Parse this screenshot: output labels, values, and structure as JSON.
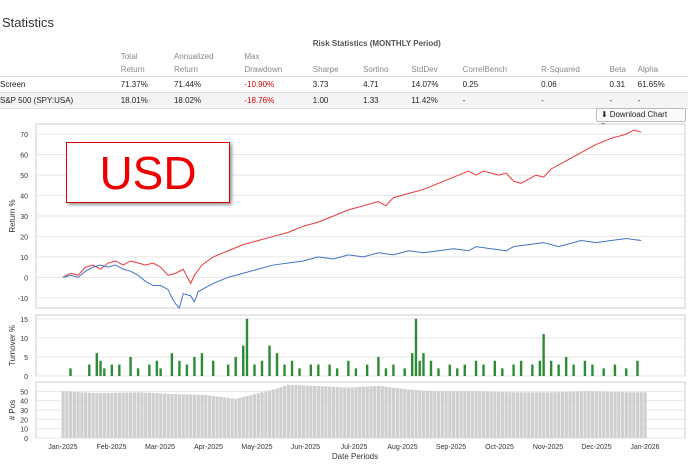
{
  "page": {
    "title": "Statistics"
  },
  "table": {
    "group_header": "Risk Statistics (MONTHLY Period)",
    "head_top": [
      "",
      "Total",
      "Annualized",
      "Max",
      "",
      "",
      "",
      "",
      "",
      "",
      ""
    ],
    "head_bot": [
      "",
      "Return",
      "Return",
      "Drawdown",
      "Sharpe",
      "Sortino",
      "StdDev",
      "CorrelBench",
      "R-Squared",
      "Beta",
      "Alpha"
    ],
    "rows": [
      [
        "Screen",
        "71.37%",
        "71.44%",
        "-10.90%",
        "3.73",
        "4.71",
        "14.07%",
        "0.25",
        "0.06",
        "0.31",
        "61.65%"
      ],
      [
        "S&P 500 (SPY:USA)",
        "18.01%",
        "18.02%",
        "-18.76%",
        "1.00",
        "1.33",
        "11.42%",
        "-",
        "-",
        "-",
        "-"
      ]
    ]
  },
  "download_button": {
    "label": "Download Chart Data",
    "icon": "download-icon"
  },
  "watermark": {
    "text": "USD",
    "color": "#e00000"
  },
  "chart_data": [
    {
      "type": "line",
      "ylabel": "Return %",
      "ylim": [
        -15,
        75
      ],
      "yticks": [
        -10,
        0,
        10,
        20,
        30,
        40,
        50,
        60,
        70
      ],
      "grid": true,
      "series": [
        {
          "color": "#e8393c",
          "points": [
            [
              0,
              0
            ],
            [
              2,
              2
            ],
            [
              4,
              1
            ],
            [
              6,
              5
            ],
            [
              8,
              6
            ],
            [
              10,
              4
            ],
            [
              12,
              7
            ],
            [
              14,
              8
            ],
            [
              16,
              6
            ],
            [
              18,
              8
            ],
            [
              20,
              7
            ],
            [
              22,
              6
            ],
            [
              24,
              7
            ],
            [
              26,
              5
            ],
            [
              28,
              1
            ],
            [
              30,
              2
            ],
            [
              32,
              4
            ],
            [
              34,
              -3
            ],
            [
              35,
              1
            ],
            [
              37,
              6
            ],
            [
              40,
              10
            ],
            [
              44,
              13
            ],
            [
              48,
              16
            ],
            [
              52,
              18
            ],
            [
              56,
              20
            ],
            [
              60,
              22
            ],
            [
              64,
              25
            ],
            [
              68,
              27
            ],
            [
              72,
              30
            ],
            [
              76,
              33
            ],
            [
              80,
              35
            ],
            [
              84,
              37
            ],
            [
              86,
              35
            ],
            [
              88,
              39
            ],
            [
              92,
              41
            ],
            [
              96,
              43
            ],
            [
              100,
              46
            ],
            [
              104,
              49
            ],
            [
              108,
              52
            ],
            [
              110,
              50
            ],
            [
              112,
              52
            ],
            [
              116,
              50
            ],
            [
              118,
              51
            ],
            [
              120,
              47
            ],
            [
              122,
              46
            ],
            [
              124,
              48
            ],
            [
              126,
              50
            ],
            [
              128,
              49
            ],
            [
              130,
              53
            ],
            [
              134,
              57
            ],
            [
              138,
              61
            ],
            [
              142,
              65
            ],
            [
              146,
              68
            ],
            [
              150,
              70
            ],
            [
              152,
              72
            ],
            [
              154,
              71
            ]
          ]
        },
        {
          "color": "#4472c4",
          "points": [
            [
              0,
              0
            ],
            [
              2,
              1
            ],
            [
              4,
              0
            ],
            [
              6,
              3
            ],
            [
              8,
              5
            ],
            [
              10,
              6
            ],
            [
              12,
              5
            ],
            [
              14,
              6
            ],
            [
              16,
              4
            ],
            [
              18,
              3
            ],
            [
              20,
              1
            ],
            [
              22,
              -2
            ],
            [
              24,
              -4
            ],
            [
              26,
              -4
            ],
            [
              28,
              -6
            ],
            [
              29,
              -10
            ],
            [
              30,
              -13
            ],
            [
              31,
              -15
            ],
            [
              32,
              -8
            ],
            [
              34,
              -9
            ],
            [
              35,
              -12
            ],
            [
              36,
              -7
            ],
            [
              40,
              -3
            ],
            [
              44,
              0
            ],
            [
              48,
              2
            ],
            [
              52,
              4
            ],
            [
              56,
              6
            ],
            [
              60,
              7
            ],
            [
              64,
              8
            ],
            [
              68,
              10
            ],
            [
              72,
              9
            ],
            [
              76,
              11
            ],
            [
              80,
              10
            ],
            [
              84,
              12
            ],
            [
              88,
              11
            ],
            [
              92,
              13
            ],
            [
              96,
              12
            ],
            [
              100,
              13
            ],
            [
              104,
              14
            ],
            [
              108,
              13
            ],
            [
              110,
              15
            ],
            [
              114,
              14
            ],
            [
              118,
              13
            ],
            [
              120,
              15
            ],
            [
              124,
              16
            ],
            [
              128,
              17
            ],
            [
              132,
              15
            ],
            [
              134,
              16
            ],
            [
              138,
              18
            ],
            [
              142,
              17
            ],
            [
              146,
              18
            ],
            [
              150,
              19
            ],
            [
              154,
              18
            ]
          ]
        }
      ]
    },
    {
      "type": "bar",
      "ylabel": "Turnover %",
      "ylim": [
        0,
        16
      ],
      "yticks": [
        0,
        5,
        10,
        15
      ],
      "color": "#2e8b35",
      "points": [
        [
          2,
          2
        ],
        [
          7,
          3
        ],
        [
          9,
          6
        ],
        [
          10,
          4
        ],
        [
          11,
          2
        ],
        [
          13,
          3
        ],
        [
          15,
          3
        ],
        [
          18,
          5
        ],
        [
          20,
          2
        ],
        [
          23,
          3
        ],
        [
          25,
          4
        ],
        [
          26,
          2
        ],
        [
          29,
          6
        ],
        [
          31,
          4
        ],
        [
          33,
          3
        ],
        [
          35,
          5
        ],
        [
          37,
          6
        ],
        [
          40,
          4
        ],
        [
          44,
          3
        ],
        [
          46,
          5
        ],
        [
          48,
          8
        ],
        [
          49,
          15
        ],
        [
          51,
          3
        ],
        [
          53,
          4
        ],
        [
          55,
          8
        ],
        [
          57,
          6
        ],
        [
          59,
          3
        ],
        [
          61,
          4
        ],
        [
          63,
          2
        ],
        [
          66,
          3
        ],
        [
          68,
          3
        ],
        [
          71,
          3
        ],
        [
          73,
          2
        ],
        [
          76,
          4
        ],
        [
          78,
          2
        ],
        [
          81,
          3
        ],
        [
          84,
          5
        ],
        [
          86,
          2
        ],
        [
          88,
          3
        ],
        [
          91,
          2
        ],
        [
          93,
          6
        ],
        [
          94,
          15
        ],
        [
          95,
          4
        ],
        [
          96,
          6
        ],
        [
          98,
          4
        ],
        [
          100,
          2
        ],
        [
          103,
          3
        ],
        [
          105,
          2
        ],
        [
          107,
          3
        ],
        [
          110,
          4
        ],
        [
          112,
          3
        ],
        [
          115,
          4
        ],
        [
          117,
          2
        ],
        [
          120,
          3
        ],
        [
          122,
          4
        ],
        [
          125,
          3
        ],
        [
          127,
          4
        ],
        [
          128,
          11
        ],
        [
          130,
          4
        ],
        [
          132,
          3
        ],
        [
          134,
          5
        ],
        [
          136,
          3
        ],
        [
          139,
          4
        ],
        [
          141,
          3
        ],
        [
          144,
          2
        ],
        [
          147,
          3
        ],
        [
          150,
          2
        ],
        [
          153,
          4
        ]
      ]
    },
    {
      "type": "bar",
      "ylabel": "# Pos",
      "ylim": [
        0,
        60
      ],
      "yticks": [
        0,
        10,
        20,
        30,
        40,
        50
      ],
      "color": "#cfcfcf",
      "xlabel": "Date Periods",
      "xticks": [
        "Jan-2025",
        "Feb-2025",
        "Mar-2025",
        "Apr-2025",
        "May-2025",
        "Jun-2025",
        "Jul-2025",
        "Aug-2025",
        "Sep-2025",
        "Oct-2025",
        "Nov-2025",
        "Dec-2025",
        "Jan-2026"
      ],
      "x_count": 156,
      "levels": [
        [
          0,
          50
        ],
        [
          10,
          48
        ],
        [
          20,
          49
        ],
        [
          30,
          47
        ],
        [
          38,
          46
        ],
        [
          42,
          44
        ],
        [
          46,
          42
        ],
        [
          50,
          46
        ],
        [
          56,
          52
        ],
        [
          60,
          57
        ],
        [
          66,
          56
        ],
        [
          72,
          55
        ],
        [
          76,
          54
        ],
        [
          80,
          55
        ],
        [
          84,
          56
        ],
        [
          88,
          54
        ],
        [
          92,
          52
        ],
        [
          100,
          50
        ],
        [
          110,
          50
        ],
        [
          120,
          49
        ],
        [
          130,
          49
        ],
        [
          140,
          50
        ],
        [
          150,
          49
        ],
        [
          155,
          49
        ]
      ]
    }
  ]
}
